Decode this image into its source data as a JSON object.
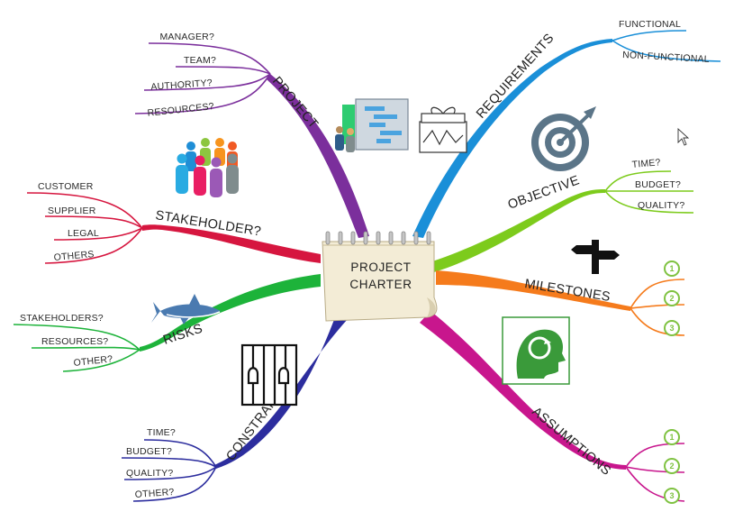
{
  "center": {
    "line1": "PROJECT",
    "line2": "CHARTER"
  },
  "branches": {
    "project": {
      "label": "PROJECT",
      "color": "#7b2f9c",
      "leaves": [
        "MANAGER?",
        "TEAM?",
        "AUTHORITY?",
        "RESOURCES?"
      ]
    },
    "stakeholder": {
      "label": "STAKEHOLDER?",
      "color": "#d6163f",
      "leaves": [
        "CUSTOMER",
        "SUPPLIER",
        "LEGAL",
        "OTHERS"
      ]
    },
    "risks": {
      "label": "RISKS",
      "color": "#1db33a",
      "leaves": [
        "STAKEHOLDERS?",
        "RESOURCES?",
        "OTHER?"
      ]
    },
    "constraints": {
      "label": "CONSTRAINTS",
      "color": "#2c2d9e",
      "leaves": [
        "TIME?",
        "BUDGET?",
        "QUALITY?",
        "OTHER?"
      ]
    },
    "requirements": {
      "label": "REQUIREMENTS",
      "color": "#1a8fd8",
      "leaves": [
        "FUNCTIONAL",
        "NON-FUNCTIONAL"
      ]
    },
    "objective": {
      "label": "OBJECTIVE",
      "color": "#7dcb1c",
      "leaves": [
        "TIME?",
        "BUDGET?",
        "QUALITY?"
      ]
    },
    "milestones": {
      "label": "MILESTONES",
      "color": "#f57b1c",
      "leaves": [
        "1",
        "2",
        "3"
      ]
    },
    "assumptions": {
      "label": "ASSUMPTIONS",
      "color": "#c8168d",
      "leaves": [
        "1",
        "2",
        "3"
      ]
    }
  },
  "icons": {
    "number_badge_color": "#7fc241",
    "target_color": "#5b7588",
    "brain_frame_color": "#3a9a3a"
  }
}
